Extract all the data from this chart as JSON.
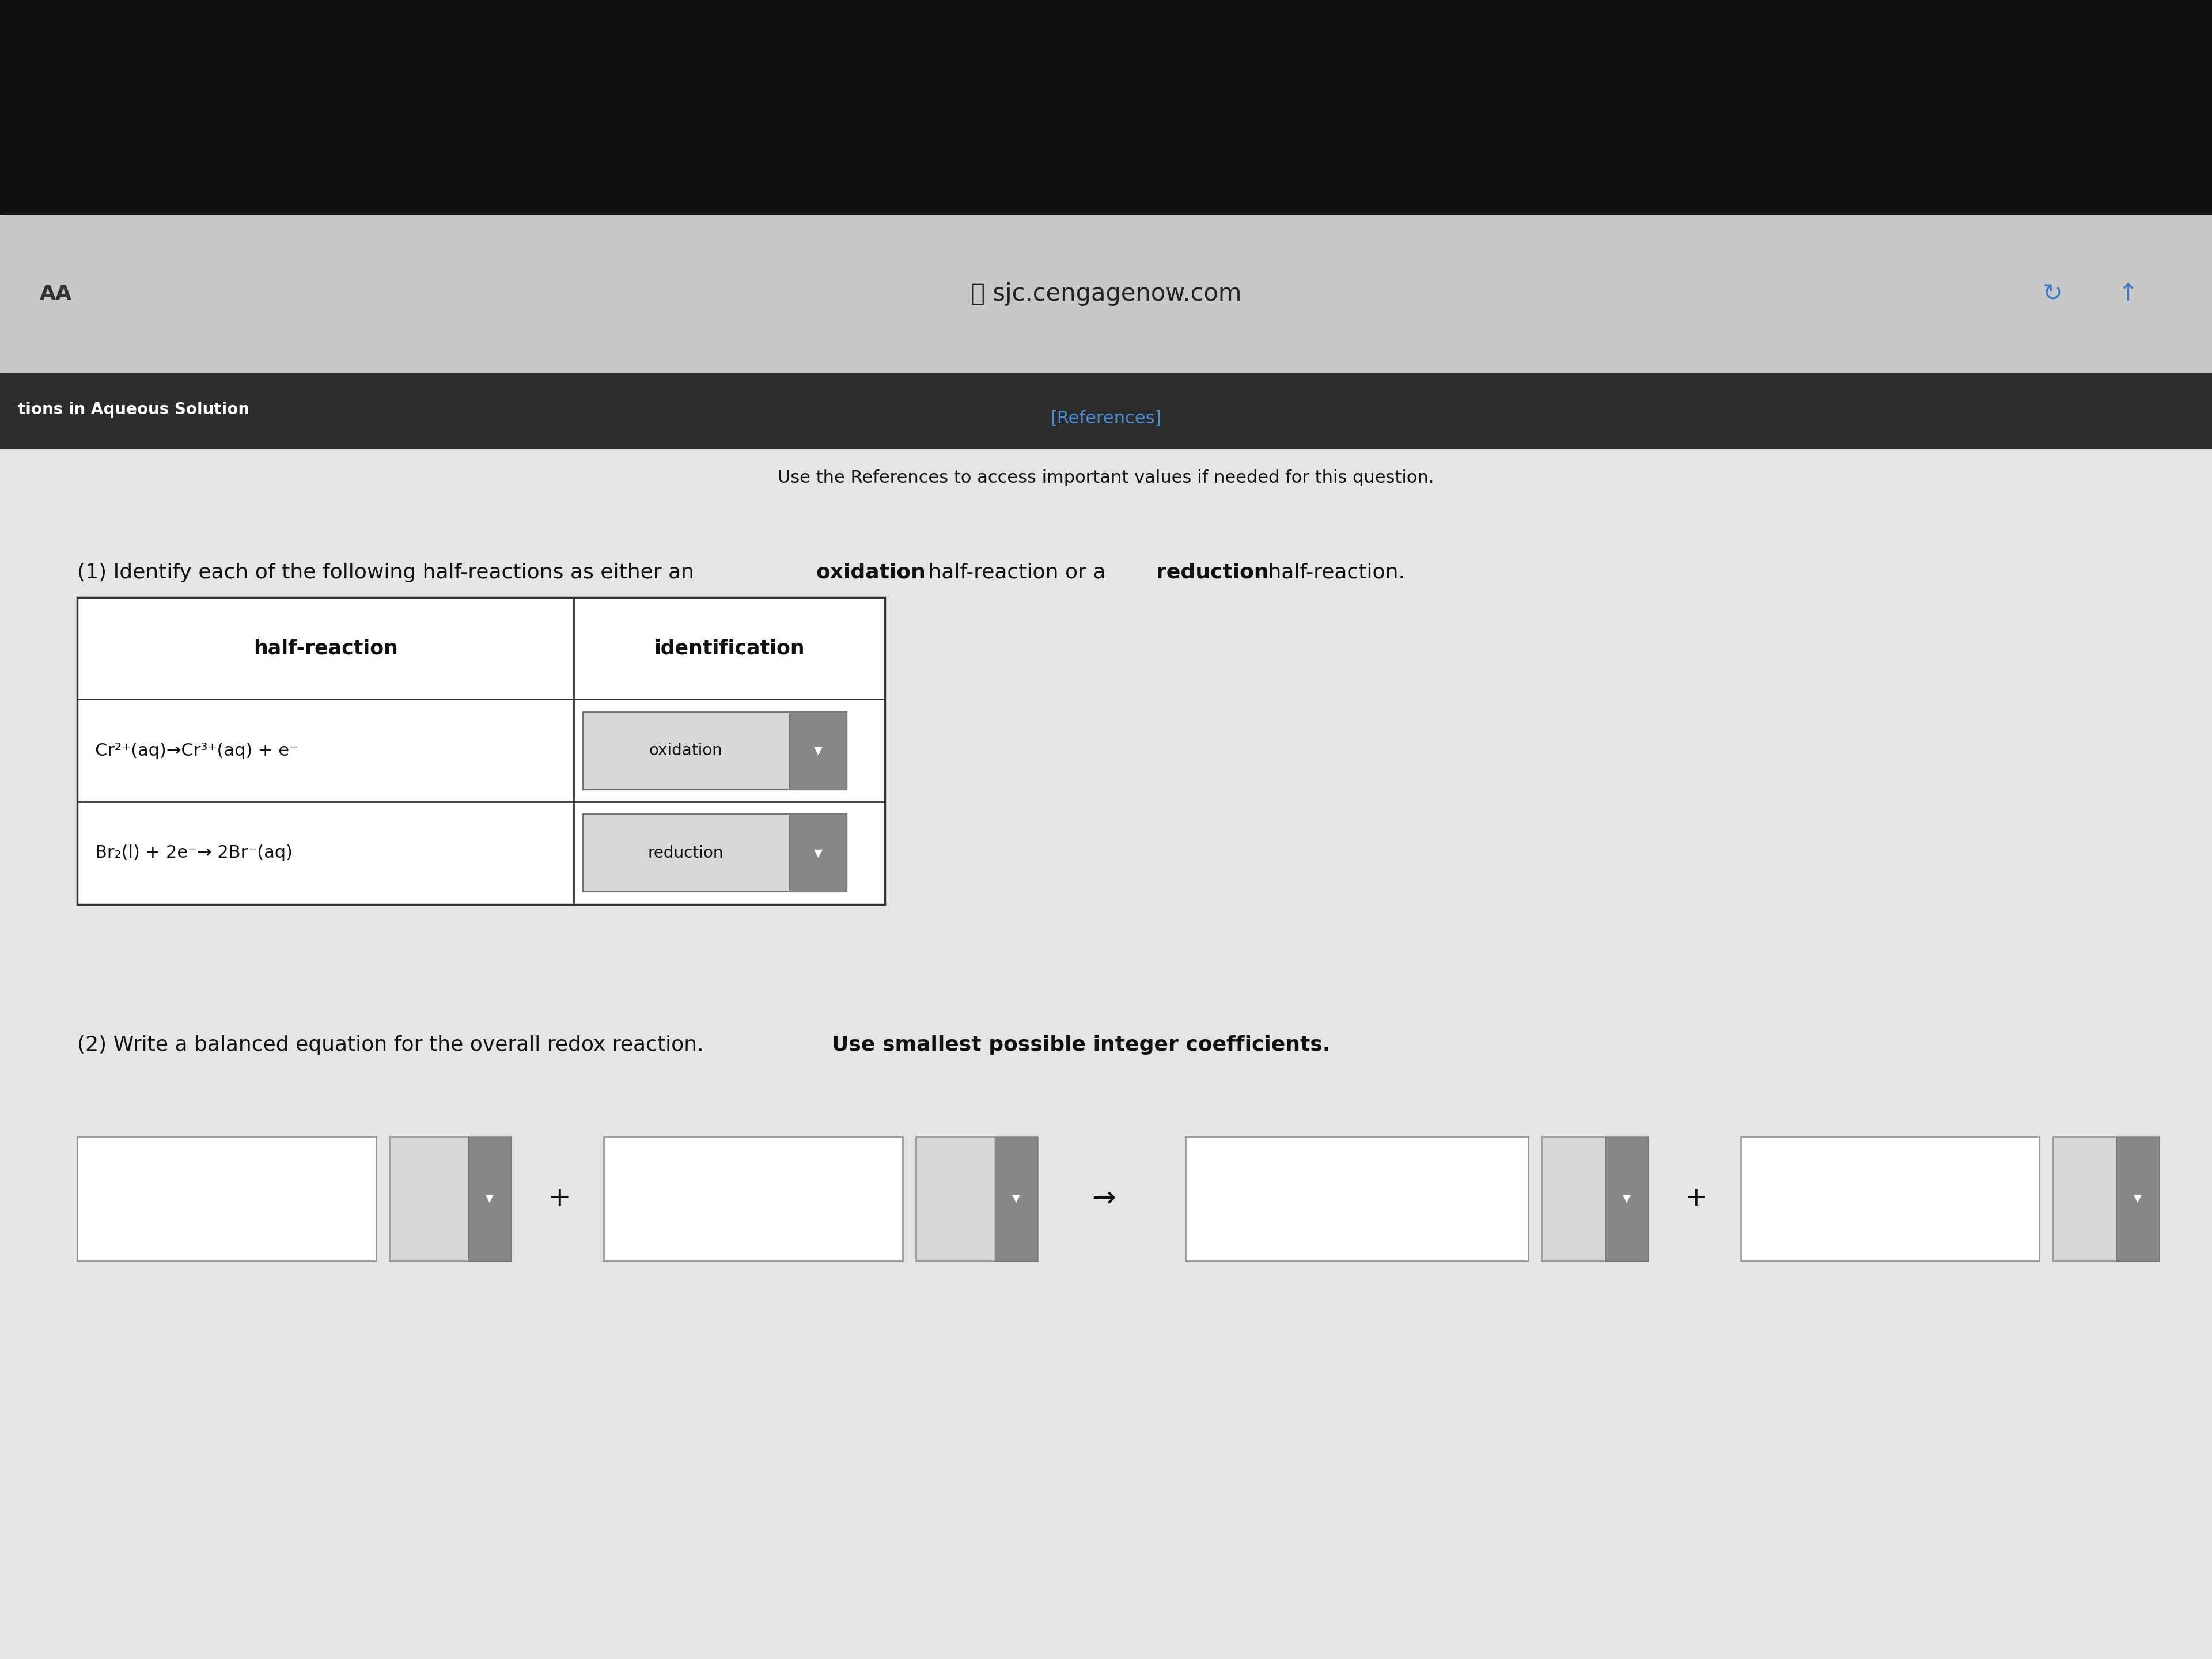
{
  "bg_top_color": "#111111",
  "bg_browser_color": "#c8c8c8",
  "bg_nav_color": "#2c2c2c",
  "bg_content_color": "#e5e5e5",
  "url_text": "sjc.cengagenow.com",
  "aa_text": "AA",
  "nav_left_text": "tions in Aqueous Solution",
  "references_text": "[References]",
  "use_ref_text": "Use the References to access important values if needed for this question.",
  "question_number": "(1)",
  "question_pre": "Identify each of the following half-reactions as either an ",
  "question_bold1": "oxidation",
  "question_mid": " half-reaction or a ",
  "question_bold2": "reduction",
  "question_end": " half-reaction.",
  "col1_header": "half-reaction",
  "col2_header": "identification",
  "row1_reaction": "Cr²⁺(aq)→Cr³⁺(aq) + e⁻",
  "row1_id": "oxidation",
  "row2_reaction": "Br₂(l) + 2e⁻→ 2Br⁻(aq)",
  "row2_id": "reduction",
  "part2_pre": "(2) Write a balanced equation for the overall redox reaction. ",
  "part2_bold": "Use smallest possible integer coefficients.",
  "arrow": "→",
  "down_arrow": "▼",
  "plus": "+",
  "refresh_icon": "↻",
  "upload_icon": "↑",
  "lock_icon": "🔒"
}
